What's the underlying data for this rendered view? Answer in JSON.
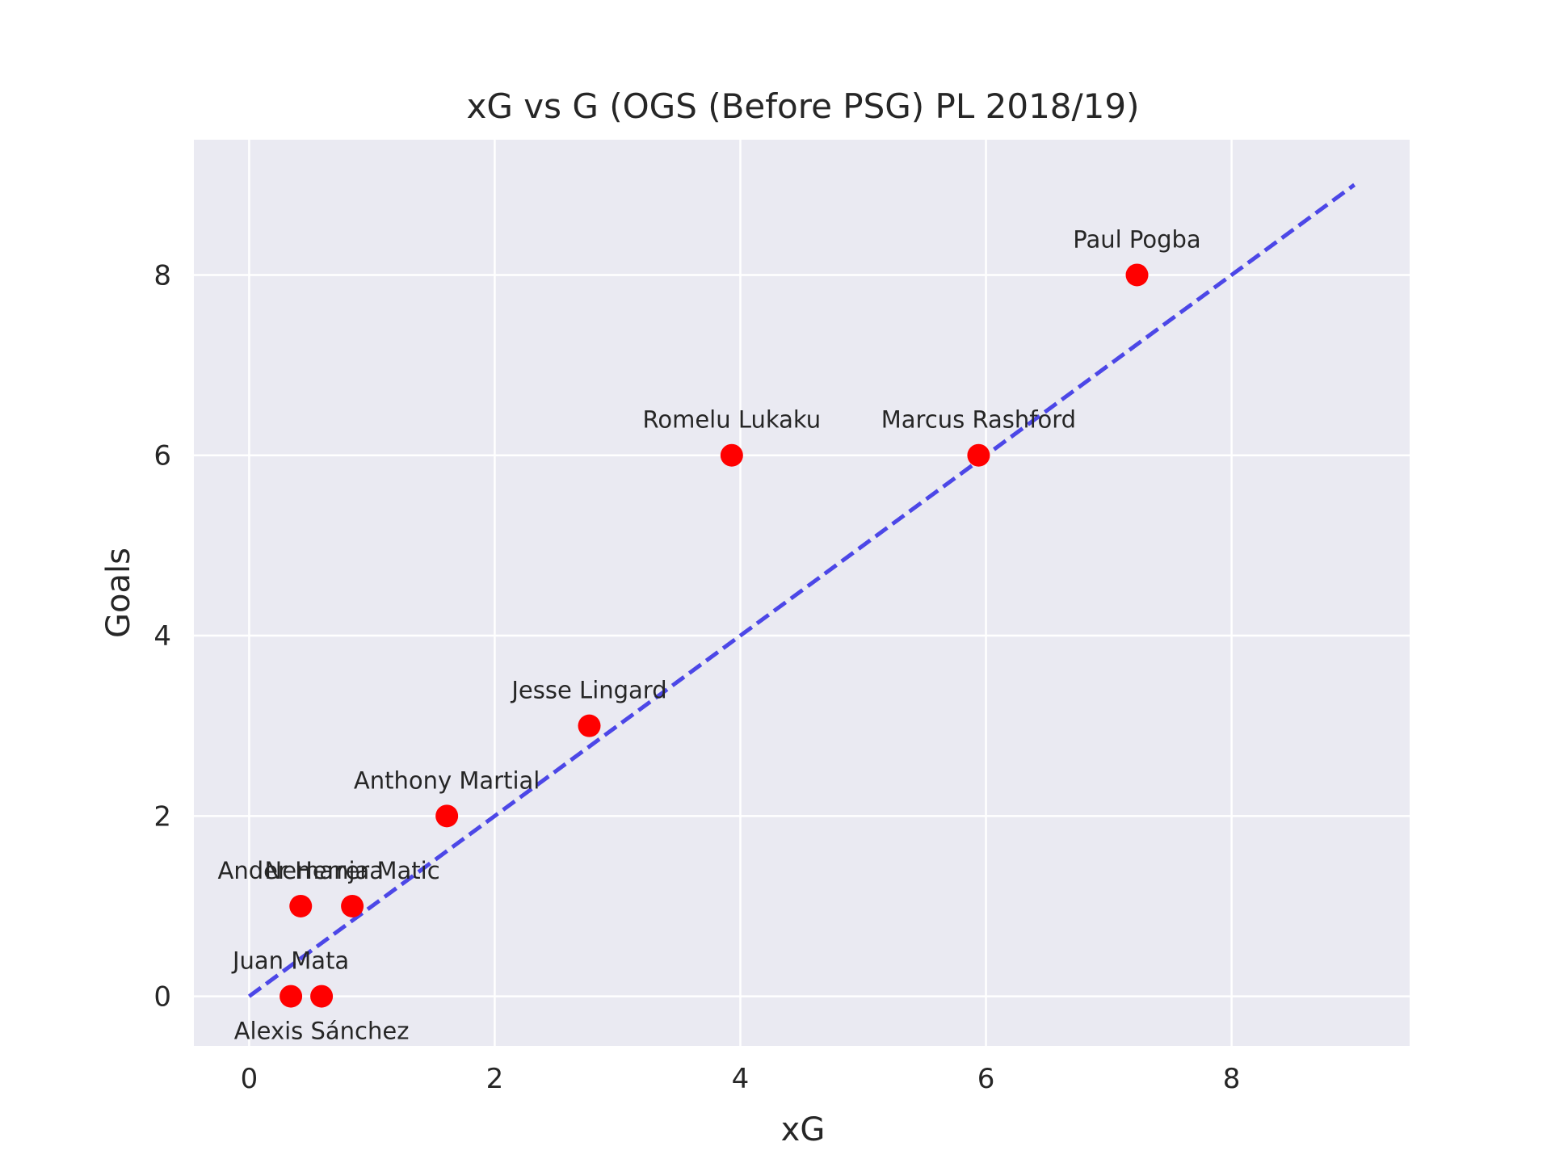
{
  "chart_data": {
    "type": "scatter",
    "title": "xG vs G (OGS (Before PSG) PL 2018/19)",
    "xlabel": "xG",
    "ylabel": "Goals",
    "xlim": [
      -0.45,
      9.45
    ],
    "ylim": [
      -0.55,
      9.5
    ],
    "xticks": [
      0,
      2,
      4,
      6,
      8
    ],
    "yticks": [
      0,
      2,
      4,
      6,
      8
    ],
    "grid": true,
    "point_color": "#ff0000",
    "reference_line": {
      "style": "dashed",
      "color": "#3b35e6",
      "from": [
        0,
        0
      ],
      "to": [
        9,
        9
      ]
    },
    "points": [
      {
        "label": "Paul Pogba",
        "x": 7.23,
        "y": 8
      },
      {
        "label": "Romelu Lukaku",
        "x": 3.93,
        "y": 6
      },
      {
        "label": "Marcus Rashford",
        "x": 5.94,
        "y": 6
      },
      {
        "label": "Jesse Lingard",
        "x": 2.77,
        "y": 3
      },
      {
        "label": "Anthony Martial",
        "x": 1.61,
        "y": 2
      },
      {
        "label": "Nemanja Matic",
        "x": 0.84,
        "y": 1
      },
      {
        "label": "Ander Herrera",
        "x": 0.42,
        "y": 1
      },
      {
        "label": "Juan Mata",
        "x": 0.34,
        "y": 0
      },
      {
        "label": "Alexis Sánchez",
        "x": 0.59,
        "y": 0
      }
    ]
  }
}
